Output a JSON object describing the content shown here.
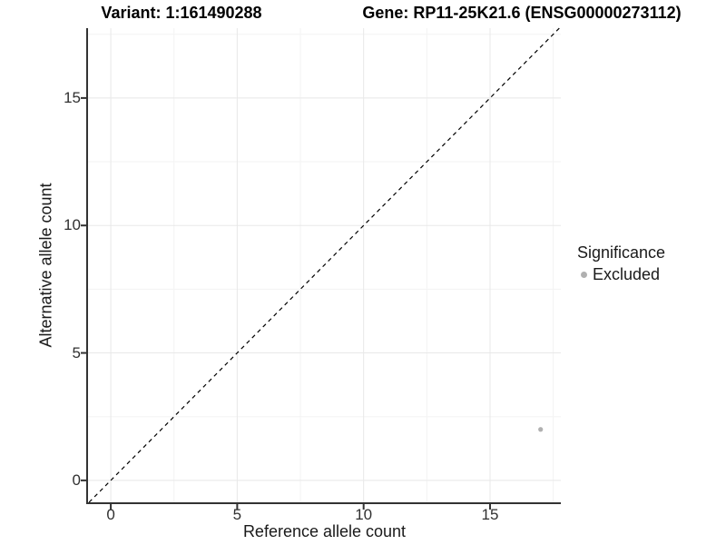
{
  "chart_data": {
    "type": "scatter",
    "titles": {
      "left": "Variant: 1:161490288",
      "right": "Gene: RP11-25K21.6 (ENSG00000273112)"
    },
    "xlabel": "Reference allele count",
    "ylabel": "Alternative allele count",
    "xlim": [
      -0.9,
      17.8
    ],
    "ylim": [
      -0.86,
      17.74
    ],
    "xticks": [
      0,
      5,
      10,
      15
    ],
    "yticks": [
      0,
      5,
      10,
      15
    ],
    "minor_tick_offset": 2.5,
    "grid": "major and minor, light gray, on white background",
    "identity_line": {
      "slope": 1,
      "intercept": 0,
      "style": "dashed",
      "color": "#000000"
    },
    "series": [
      {
        "name": "Excluded",
        "color": "#b0b0b0",
        "points": [
          {
            "x": 17,
            "y": 2
          }
        ]
      }
    ],
    "legend": {
      "title": "Significance",
      "position": "right",
      "items": [
        {
          "label": "Excluded",
          "color": "#b0b0b0"
        }
      ]
    }
  },
  "colors": {
    "background": "#ffffff",
    "grid_major": "#e8e8e8",
    "grid_minor": "#f3f3f3",
    "axis_line": "#333333",
    "tick_mark": "#333333",
    "tick_label": "#303030",
    "title_text": "#000000"
  }
}
